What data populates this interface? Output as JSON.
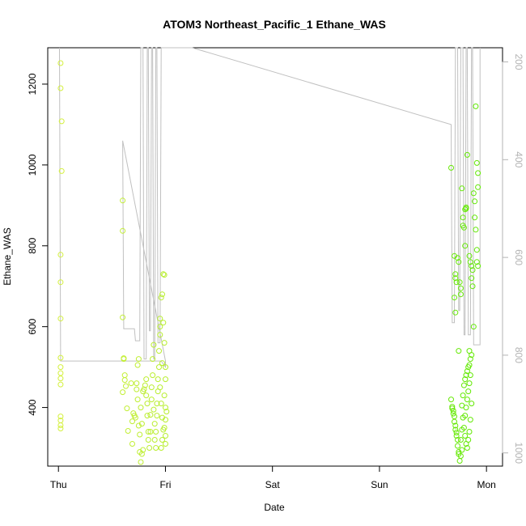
{
  "chart_data": {
    "type": "scatter",
    "title": "ATOM3 Northeast_Pacific_1 Ethane_WAS",
    "xlabel": "Date",
    "ylabel": "Ethane_WAS",
    "x_ticks": [
      "Thu",
      "Fri",
      "Sat",
      "Sun",
      "Mon"
    ],
    "x_tick_positions_days": [
      0,
      1,
      2,
      3,
      4
    ],
    "xlim_days": [
      -0.1,
      4.15
    ],
    "ylim": [
      255,
      1290
    ],
    "y_ticks": [
      400,
      600,
      800,
      1000,
      1200
    ],
    "right_axis": {
      "ticks": [
        200,
        400,
        600,
        800,
        1000
      ],
      "range": [
        171,
        1027
      ],
      "reversed": true,
      "color": "#b3b3b3"
    },
    "point_color_range": [
      "#d8f040",
      "#5ae800"
    ],
    "line_color": "#c0c0c0",
    "series": [
      {
        "kind": "points",
        "points": [
          [
            0.02,
            1252
          ],
          [
            0.02,
            1190
          ],
          [
            0.03,
            1108
          ],
          [
            0.03,
            985
          ],
          [
            0.02,
            778
          ],
          [
            0.02,
            710
          ],
          [
            0.02,
            620
          ],
          [
            0.02,
            523
          ],
          [
            0.02,
            500
          ],
          [
            0.02,
            485
          ],
          [
            0.02,
            472
          ],
          [
            0.02,
            457
          ],
          [
            0.02,
            378
          ],
          [
            0.02,
            368
          ],
          [
            0.02,
            356
          ],
          [
            0.02,
            348
          ],
          [
            0.6,
            912
          ],
          [
            0.6,
            837
          ],
          [
            0.6,
            623
          ],
          [
            0.61,
            522
          ],
          [
            0.61,
            520
          ],
          [
            0.62,
            480
          ],
          [
            0.62,
            468
          ],
          [
            0.63,
            453
          ],
          [
            0.6,
            438
          ],
          [
            0.64,
            398
          ],
          [
            0.65,
            342
          ],
          [
            0.69,
            366
          ],
          [
            0.68,
            460
          ],
          [
            0.69,
            310
          ],
          [
            0.7,
            386
          ],
          [
            0.71,
            380
          ],
          [
            0.72,
            375
          ],
          [
            0.73,
            445
          ],
          [
            0.73,
            460
          ],
          [
            0.74,
            505
          ],
          [
            0.75,
            520
          ],
          [
            0.74,
            420
          ],
          [
            0.75,
            355
          ],
          [
            0.76,
            333
          ],
          [
            0.76,
            290
          ],
          [
            0.77,
            265
          ],
          [
            0.78,
            285
          ],
          [
            0.79,
            295
          ],
          [
            0.78,
            360
          ],
          [
            0.77,
            400
          ],
          [
            0.79,
            440
          ],
          [
            0.8,
            445
          ],
          [
            0.81,
            455
          ],
          [
            0.82,
            470
          ],
          [
            0.82,
            430
          ],
          [
            0.83,
            410
          ],
          [
            0.83,
            380
          ],
          [
            0.84,
            340
          ],
          [
            0.84,
            320
          ],
          [
            0.85,
            300
          ],
          [
            0.86,
            340
          ],
          [
            0.86,
            382
          ],
          [
            0.87,
            420
          ],
          [
            0.87,
            450
          ],
          [
            0.88,
            480
          ],
          [
            0.88,
            520
          ],
          [
            0.89,
            555
          ],
          [
            0.89,
            395
          ],
          [
            0.9,
            360
          ],
          [
            0.9,
            320
          ],
          [
            0.91,
            300
          ],
          [
            0.91,
            340
          ],
          [
            0.92,
            380
          ],
          [
            0.92,
            410
          ],
          [
            0.93,
            440
          ],
          [
            0.93,
            470
          ],
          [
            0.94,
            500
          ],
          [
            0.94,
            540
          ],
          [
            0.95,
            580
          ],
          [
            0.95,
            600
          ],
          [
            0.95,
            620
          ],
          [
            0.96,
            672
          ],
          [
            0.97,
            680
          ],
          [
            0.98,
            730
          ],
          [
            0.99,
            728
          ],
          [
            0.98,
            610
          ],
          [
            0.99,
            560
          ],
          [
            0.97,
            510
          ],
          [
            1.0,
            500
          ],
          [
            1.0,
            470
          ],
          [
            0.99,
            430
          ],
          [
            1.0,
            400
          ],
          [
            1.01,
            390
          ],
          [
            1.0,
            370
          ],
          [
            0.99,
            350
          ],
          [
            1.0,
            330
          ],
          [
            1.0,
            310
          ],
          [
            0.96,
            300
          ],
          [
            0.97,
            320
          ],
          [
            0.98,
            345
          ],
          [
            0.97,
            375
          ],
          [
            0.96,
            410
          ],
          [
            0.95,
            450
          ],
          [
            3.67,
            993
          ],
          [
            3.67,
            420
          ],
          [
            3.68,
            402
          ],
          [
            3.68,
            398
          ],
          [
            3.69,
            392
          ],
          [
            3.69,
            385
          ],
          [
            3.7,
            378
          ],
          [
            3.7,
            365
          ],
          [
            3.71,
            355
          ],
          [
            3.71,
            345
          ],
          [
            3.72,
            338
          ],
          [
            3.72,
            330
          ],
          [
            3.73,
            320
          ],
          [
            3.73,
            305
          ],
          [
            3.74,
            290
          ],
          [
            3.74,
            285
          ],
          [
            3.75,
            268
          ],
          [
            3.76,
            280
          ],
          [
            3.77,
            295
          ],
          [
            3.76,
            320
          ],
          [
            3.77,
            345
          ],
          [
            3.78,
            375
          ],
          [
            3.77,
            405
          ],
          [
            3.78,
            430
          ],
          [
            3.79,
            455
          ],
          [
            3.8,
            470
          ],
          [
            3.81,
            480
          ],
          [
            3.82,
            490
          ],
          [
            3.83,
            500
          ],
          [
            3.84,
            505
          ],
          [
            3.85,
            520
          ],
          [
            3.86,
            530
          ],
          [
            3.85,
            480
          ],
          [
            3.84,
            460
          ],
          [
            3.83,
            440
          ],
          [
            3.82,
            420
          ],
          [
            3.81,
            400
          ],
          [
            3.8,
            380
          ],
          [
            3.79,
            350
          ],
          [
            3.8,
            330
          ],
          [
            3.81,
            310
          ],
          [
            3.82,
            300
          ],
          [
            3.83,
            320
          ],
          [
            3.84,
            340
          ],
          [
            3.85,
            370
          ],
          [
            3.86,
            410
          ],
          [
            3.7,
            775
          ],
          [
            3.71,
            730
          ],
          [
            3.71,
            720
          ],
          [
            3.72,
            710
          ],
          [
            3.7,
            672
          ],
          [
            3.71,
            635
          ],
          [
            3.73,
            770
          ],
          [
            3.74,
            760
          ],
          [
            3.75,
            710
          ],
          [
            3.76,
            695
          ],
          [
            3.76,
            680
          ],
          [
            3.77,
            942
          ],
          [
            3.78,
            870
          ],
          [
            3.78,
            850
          ],
          [
            3.79,
            845
          ],
          [
            3.8,
            890
          ],
          [
            3.81,
            895
          ],
          [
            3.81,
            892
          ],
          [
            3.82,
            1025
          ],
          [
            3.8,
            800
          ],
          [
            3.84,
            775
          ],
          [
            3.85,
            760
          ],
          [
            3.86,
            750
          ],
          [
            3.87,
            740
          ],
          [
            3.86,
            720
          ],
          [
            3.87,
            700
          ],
          [
            3.88,
            930
          ],
          [
            3.89,
            910
          ],
          [
            3.89,
            870
          ],
          [
            3.9,
            840
          ],
          [
            3.91,
            790
          ],
          [
            3.91,
            760
          ],
          [
            3.92,
            750
          ],
          [
            3.9,
            1145
          ],
          [
            3.91,
            1005
          ],
          [
            3.92,
            980
          ],
          [
            3.92,
            945
          ],
          [
            3.88,
            600
          ],
          [
            3.84,
            540
          ],
          [
            3.74,
            540
          ]
        ]
      },
      {
        "kind": "line",
        "points": [
          [
            0.01,
            1290
          ],
          [
            0.02,
            515
          ],
          [
            0.96,
            515
          ],
          [
            1.0,
            500
          ],
          [
            1.0,
            515
          ],
          [
            0.6,
            1060
          ],
          [
            0.61,
            595
          ],
          [
            0.71,
            595
          ],
          [
            0.72,
            565
          ],
          [
            0.76,
            565
          ],
          [
            0.77,
            1290
          ],
          [
            0.79,
            1290
          ],
          [
            0.8,
            520
          ],
          [
            0.82,
            520
          ],
          [
            0.83,
            1290
          ],
          [
            0.84,
            1290
          ],
          [
            0.85,
            590
          ],
          [
            0.86,
            590
          ],
          [
            0.87,
            1290
          ],
          [
            0.88,
            1290
          ],
          [
            0.89,
            520
          ],
          [
            0.9,
            520
          ],
          [
            0.91,
            1290
          ],
          [
            0.92,
            1290
          ],
          [
            0.93,
            560
          ],
          [
            0.95,
            560
          ],
          [
            0.96,
            1290
          ],
          [
            0.97,
            1290
          ],
          [
            1.25,
            1290
          ],
          [
            3.67,
            1100
          ],
          [
            3.68,
            610
          ],
          [
            3.7,
            610
          ],
          [
            3.71,
            1290
          ],
          [
            3.73,
            1290
          ],
          [
            3.74,
            640
          ],
          [
            3.75,
            640
          ],
          [
            3.76,
            1290
          ],
          [
            3.78,
            1290
          ],
          [
            3.79,
            580
          ],
          [
            3.8,
            580
          ],
          [
            3.81,
            1290
          ],
          [
            3.82,
            1290
          ],
          [
            3.83,
            580
          ],
          [
            3.85,
            580
          ],
          [
            3.86,
            1290
          ],
          [
            3.87,
            1290
          ],
          [
            3.88,
            555
          ],
          [
            3.94,
            555
          ],
          [
            3.94,
            1290
          ]
        ]
      }
    ]
  }
}
